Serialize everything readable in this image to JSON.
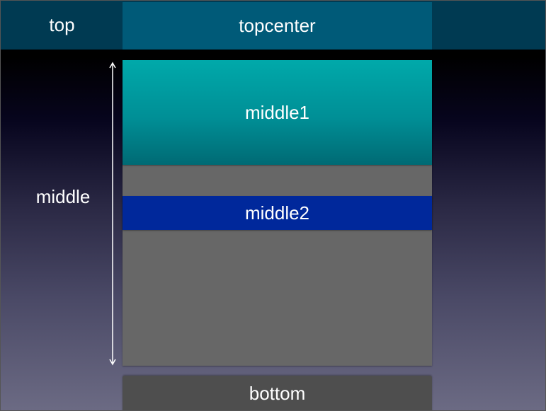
{
  "diagram": {
    "top_label": "top",
    "topcenter_label": "topcenter",
    "middle_label": "middle",
    "middle1_label": "middle1",
    "middle2_label": "middle2",
    "bottom_label": "bottom"
  },
  "colors": {
    "top_band": "#003a52",
    "topcenter": "#005a78",
    "middle_container": "#676767",
    "middle1_top": "#00a9aa",
    "middle1_bottom": "#006a74",
    "middle2": "#00289b",
    "bottom": "#4e4e4e",
    "text": "#ffffff"
  },
  "icons": {
    "middle_extent": "double-arrow-vertical-icon"
  }
}
